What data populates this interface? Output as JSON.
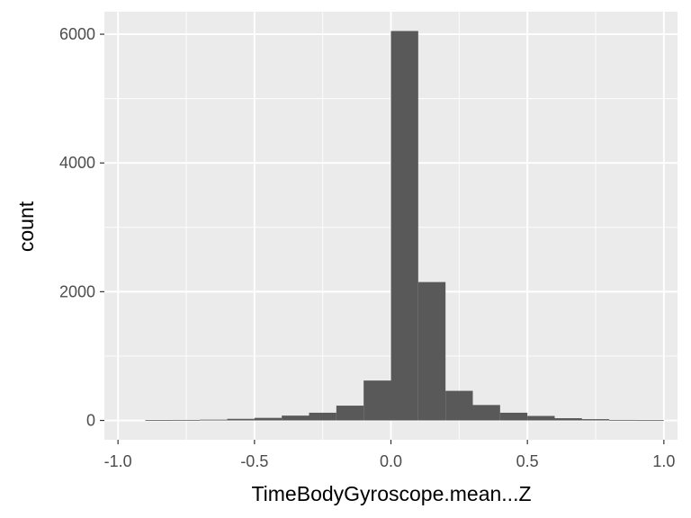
{
  "chart_data": {
    "type": "bar",
    "xlabel": "TimeBodyGyroscope.mean...Z",
    "ylabel": "count",
    "xlim": [
      -1.05,
      1.05
    ],
    "ylim": [
      -300,
      6350
    ],
    "x_ticks": [
      -1.0,
      -0.5,
      0.0,
      0.5,
      1.0
    ],
    "x_tick_labels": [
      "-1.0",
      "-0.5",
      "0.0",
      "0.5",
      "1.0"
    ],
    "y_ticks": [
      0,
      2000,
      4000,
      6000
    ],
    "y_tick_labels": [
      "0",
      "2000",
      "4000",
      "6000"
    ],
    "grid": true,
    "bin_width": 0.1,
    "bins": [
      {
        "x_start": -0.9,
        "x_end": -0.8,
        "count": 5
      },
      {
        "x_start": -0.8,
        "x_end": -0.7,
        "count": 8
      },
      {
        "x_start": -0.7,
        "x_end": -0.6,
        "count": 12
      },
      {
        "x_start": -0.6,
        "x_end": -0.5,
        "count": 25
      },
      {
        "x_start": -0.5,
        "x_end": -0.4,
        "count": 40
      },
      {
        "x_start": -0.4,
        "x_end": -0.3,
        "count": 75
      },
      {
        "x_start": -0.3,
        "x_end": -0.2,
        "count": 120
      },
      {
        "x_start": -0.2,
        "x_end": -0.1,
        "count": 230
      },
      {
        "x_start": -0.1,
        "x_end": 0.0,
        "count": 620
      },
      {
        "x_start": 0.0,
        "x_end": 0.1,
        "count": 6050
      },
      {
        "x_start": 0.1,
        "x_end": 0.2,
        "count": 2150
      },
      {
        "x_start": 0.2,
        "x_end": 0.3,
        "count": 460
      },
      {
        "x_start": 0.3,
        "x_end": 0.4,
        "count": 240
      },
      {
        "x_start": 0.4,
        "x_end": 0.5,
        "count": 120
      },
      {
        "x_start": 0.5,
        "x_end": 0.6,
        "count": 70
      },
      {
        "x_start": 0.6,
        "x_end": 0.7,
        "count": 35
      },
      {
        "x_start": 0.7,
        "x_end": 0.8,
        "count": 20
      },
      {
        "x_start": 0.8,
        "x_end": 0.9,
        "count": 8
      },
      {
        "x_start": 0.9,
        "x_end": 1.0,
        "count": 4
      }
    ],
    "colors": {
      "panel_background": "#ebebeb",
      "grid_major": "#ffffff",
      "bar_fill": "#595959",
      "tick_color": "#333333"
    }
  }
}
